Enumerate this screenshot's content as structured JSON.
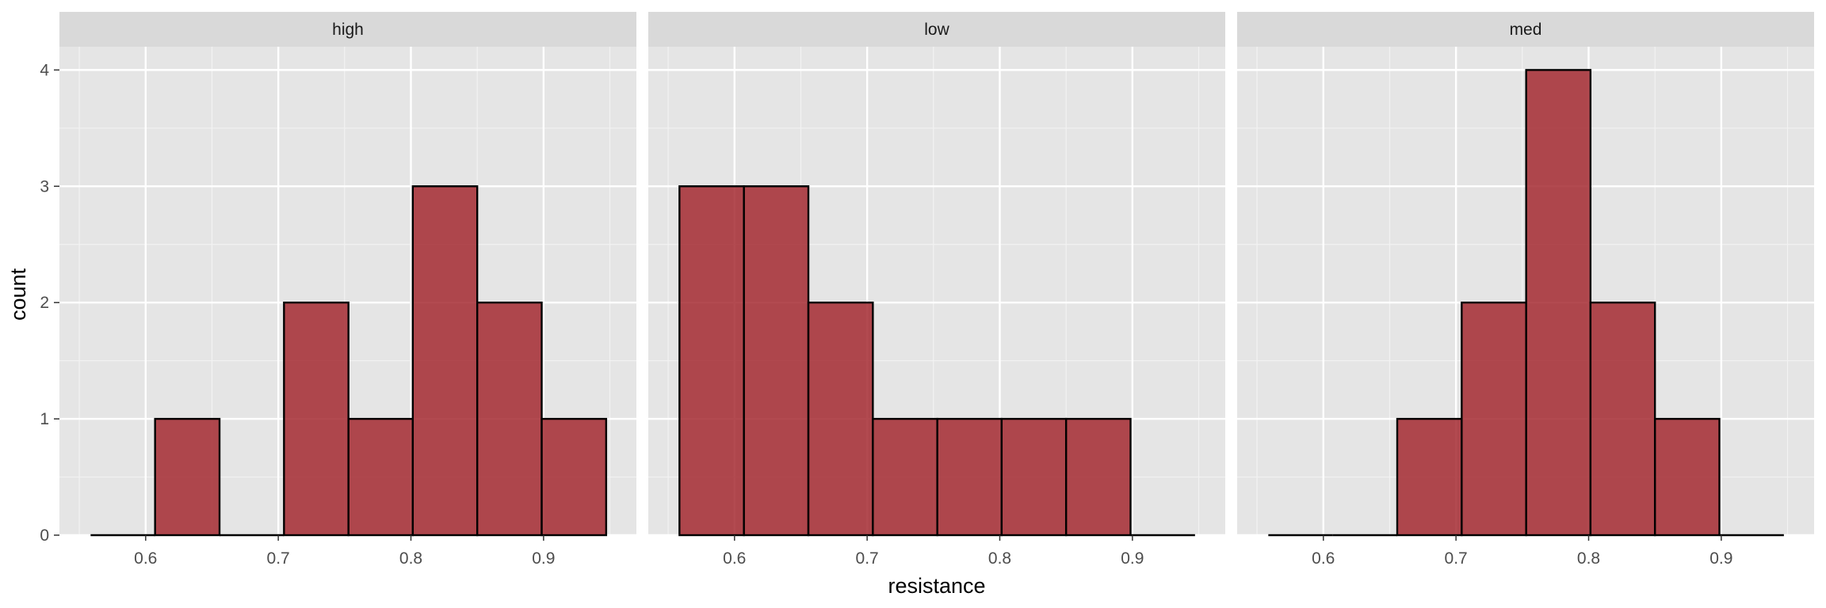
{
  "chart_data": {
    "type": "bar",
    "subtype": "faceted-histogram",
    "xlabel": "resistance",
    "ylabel": "count",
    "xlim": [
      0.535,
      0.97
    ],
    "ylim": [
      0,
      4.2
    ],
    "x_ticks": [
      "0.6",
      "0.7",
      "0.8",
      "0.9"
    ],
    "x_tick_values": [
      0.6,
      0.7,
      0.8,
      0.9
    ],
    "y_ticks": [
      "0",
      "1",
      "2",
      "3",
      "4"
    ],
    "y_tick_values": [
      0,
      1,
      2,
      3,
      4
    ],
    "grid": true,
    "fill_color": "#a52a31",
    "outline_color": "#000000",
    "panel_background": "#e5e5e5",
    "strip_background": "#d9d9d9",
    "bin_edges": [
      0.5585,
      0.6071,
      0.6557,
      0.7043,
      0.7529,
      0.8014,
      0.85,
      0.8986,
      0.9472
    ],
    "facets": [
      {
        "label": "high",
        "counts": [
          0,
          1,
          0,
          2,
          1,
          3,
          2,
          1
        ]
      },
      {
        "label": "low",
        "counts": [
          3,
          3,
          2,
          1,
          1,
          1,
          1,
          0
        ]
      },
      {
        "label": "med",
        "counts": [
          0,
          0,
          1,
          2,
          4,
          2,
          1,
          0
        ]
      }
    ]
  }
}
